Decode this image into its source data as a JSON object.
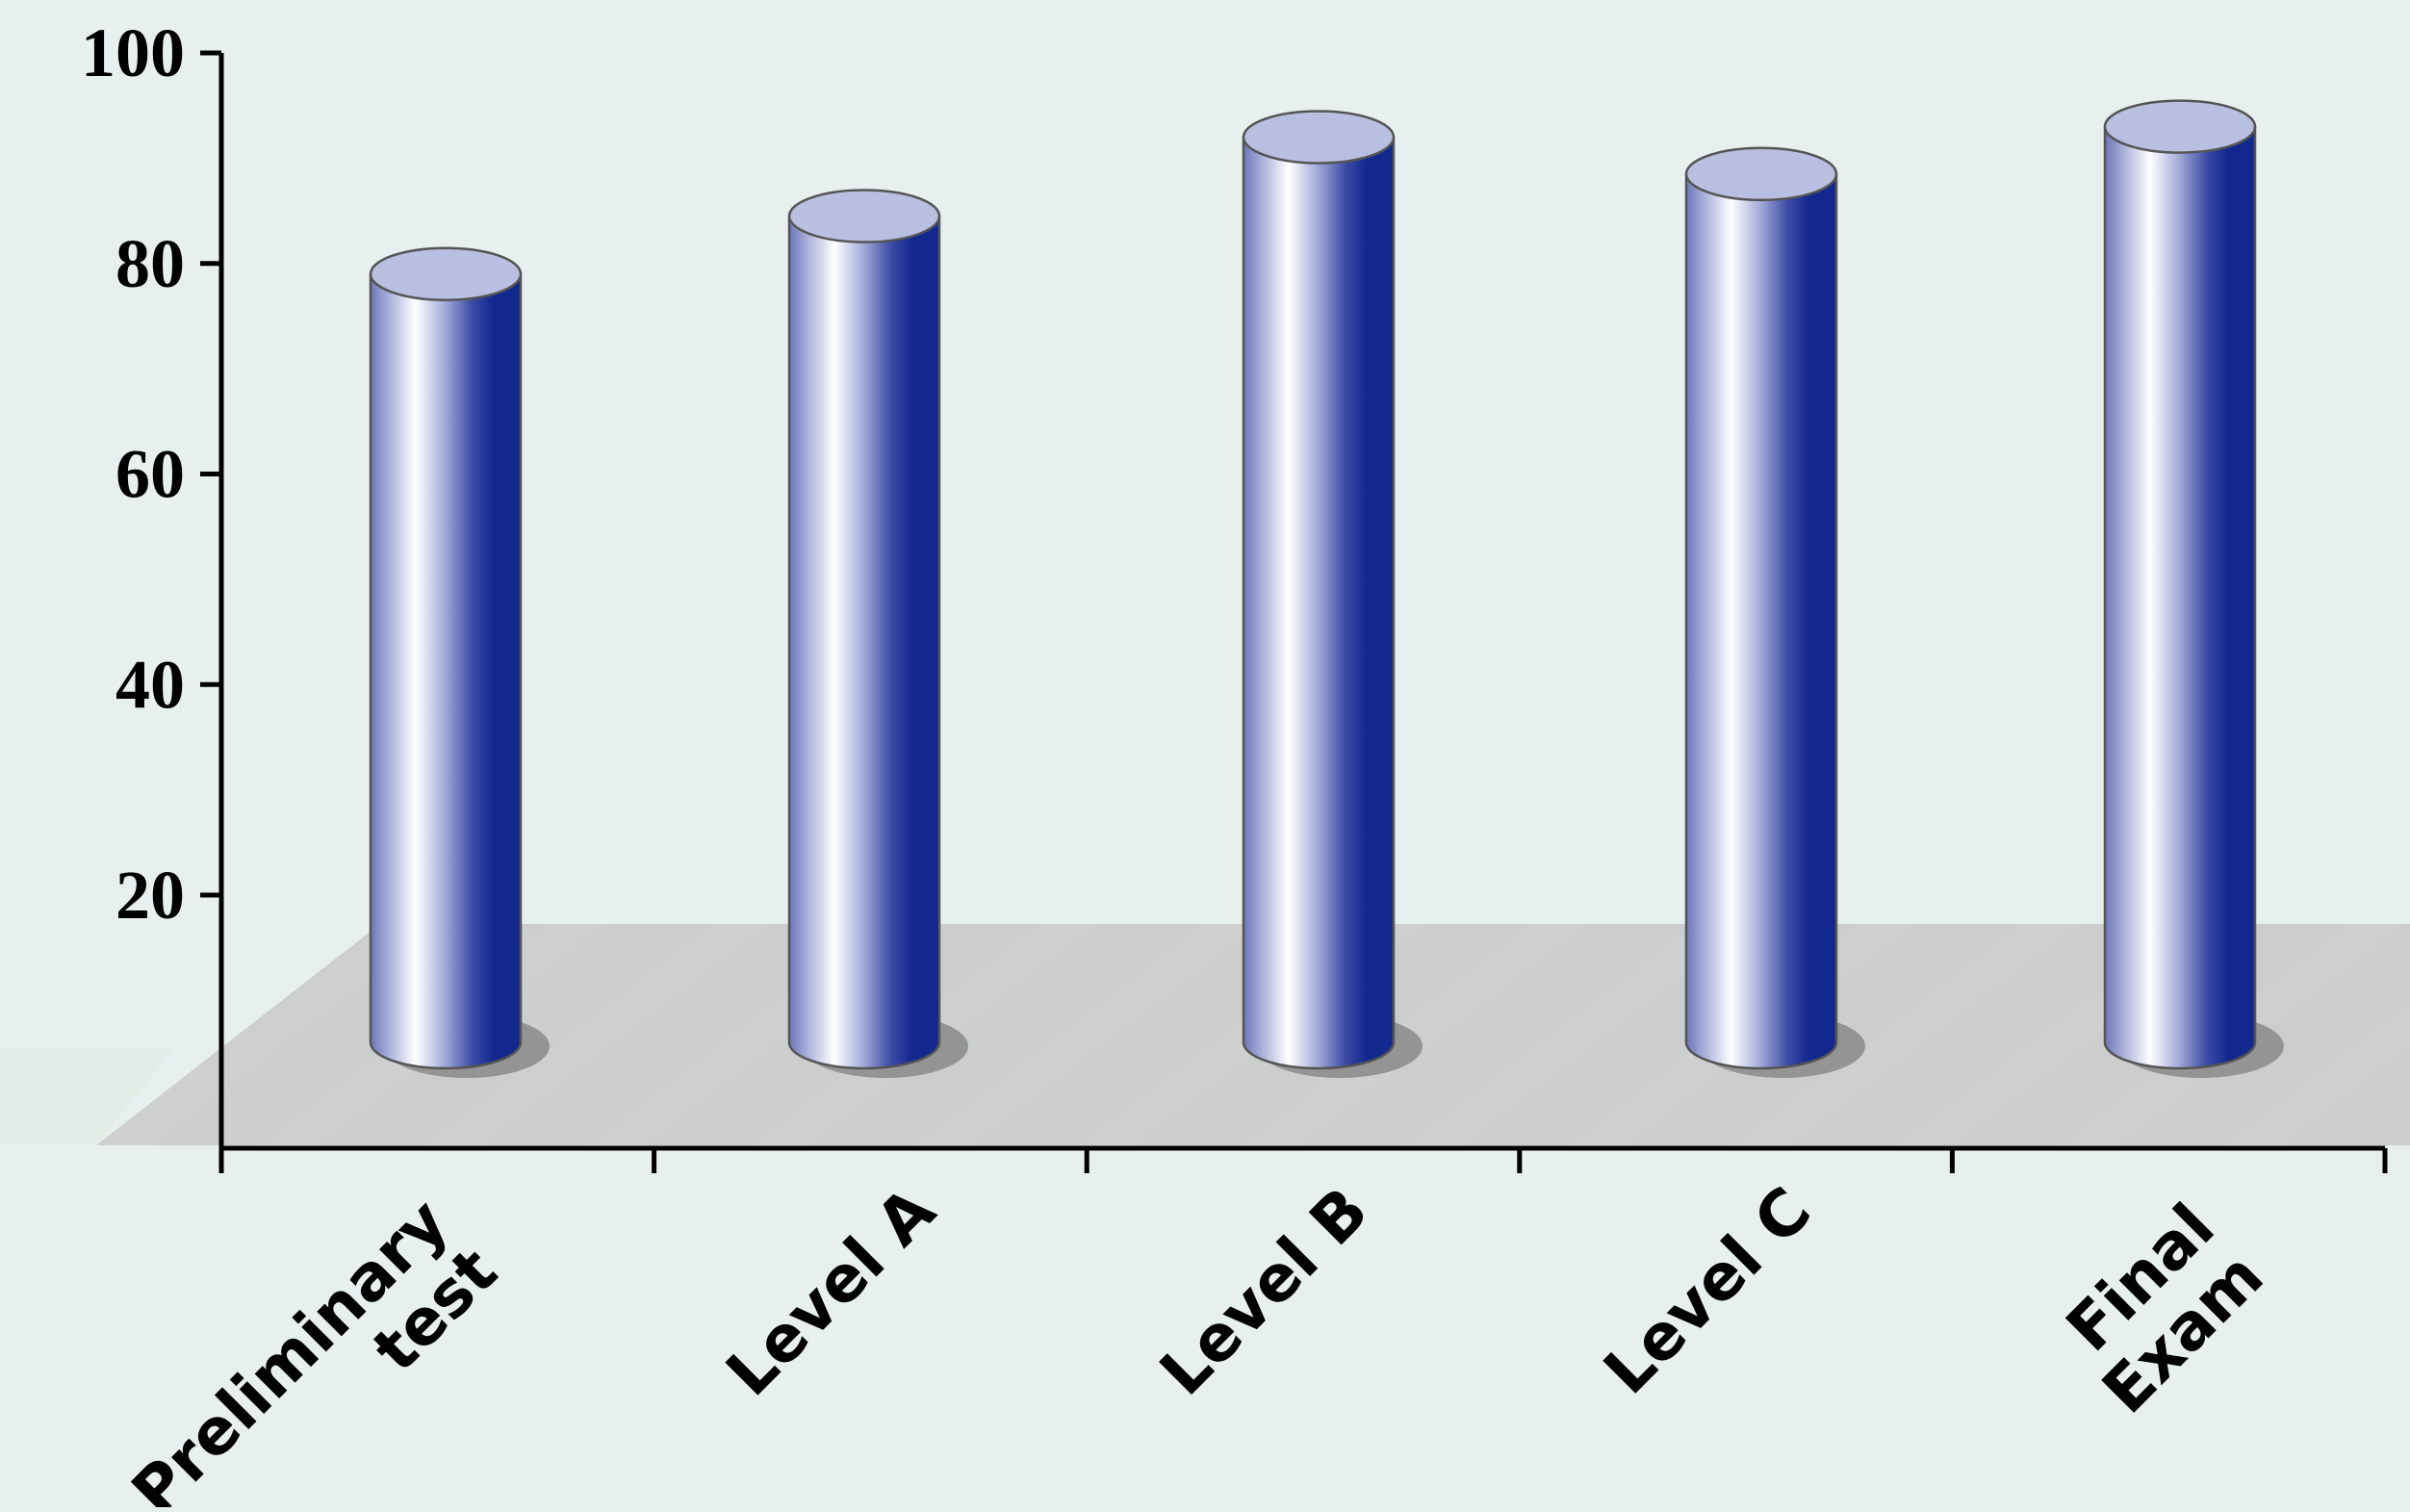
{
  "chart_data": {
    "type": "bar",
    "categories": [
      [
        "Preliminary",
        "test"
      ],
      [
        "Level A"
      ],
      [
        "Level B"
      ],
      [
        "Level C"
      ],
      [
        "Final",
        "Exam"
      ]
    ],
    "series": [
      {
        "values": [
          79,
          84.5,
          92,
          88.5,
          93
        ]
      }
    ],
    "yticks": [
      20,
      40,
      60,
      80,
      100
    ],
    "ylim": [
      0,
      100
    ],
    "title": "",
    "xlabel": "",
    "ylabel": "",
    "grid": false,
    "legend": "none",
    "colors": {
      "background": "#e7f0ee",
      "bar_dark": "#12288f",
      "bar_light": "#ffffff",
      "bar_mid": "#6c77b8",
      "bar_top": "#b9bfe0",
      "bar_outline": "#555555",
      "floor": "#c7c7c7",
      "shadow": "#8a8a8a"
    }
  }
}
